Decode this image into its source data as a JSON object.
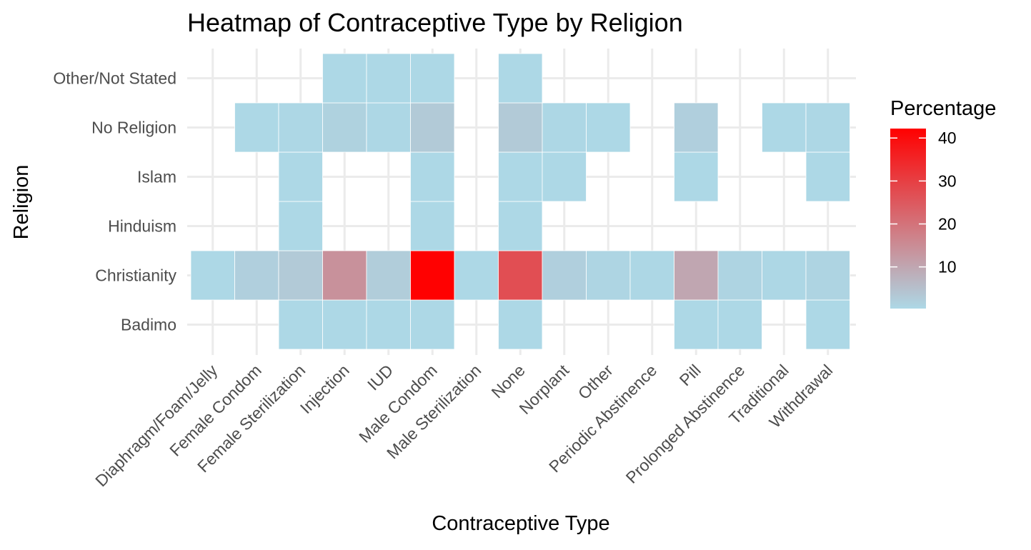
{
  "chart_data": {
    "type": "heatmap",
    "title": "Heatmap of Contraceptive Type by Religion",
    "xlabel": "Contraceptive Type",
    "ylabel": "Religion",
    "x_categories": [
      "Diaphragm/Foam/Jelly",
      "Female Condom",
      "Female Sterilization",
      "Injection",
      "IUD",
      "Male Condom",
      "Male Sterilization",
      "None",
      "Norplant",
      "Other",
      "Periodic Abstinence",
      "Pill",
      "Prolonged Abstinence",
      "Traditional",
      "Withdrawal"
    ],
    "y_categories": [
      "Badimo",
      "Christianity",
      "Hinduism",
      "Islam",
      "No Religion",
      "Other/Not Stated"
    ],
    "cells": [
      {
        "x": "Female Sterilization",
        "y": "Badimo",
        "value": 0.3
      },
      {
        "x": "Injection",
        "y": "Badimo",
        "value": 0.3
      },
      {
        "x": "IUD",
        "y": "Badimo",
        "value": 0.3
      },
      {
        "x": "Male Condom",
        "y": "Badimo",
        "value": 0.3
      },
      {
        "x": "None",
        "y": "Badimo",
        "value": 0.3
      },
      {
        "x": "Pill",
        "y": "Badimo",
        "value": 0.3
      },
      {
        "x": "Prolonged Abstinence",
        "y": "Badimo",
        "value": 0.3
      },
      {
        "x": "Withdrawal",
        "y": "Badimo",
        "value": 0.3
      },
      {
        "x": "Diaphragm/Foam/Jelly",
        "y": "Christianity",
        "value": 0.3
      },
      {
        "x": "Female Condom",
        "y": "Christianity",
        "value": 2
      },
      {
        "x": "Female Sterilization",
        "y": "Christianity",
        "value": 3
      },
      {
        "x": "Injection",
        "y": "Christianity",
        "value": 14
      },
      {
        "x": "IUD",
        "y": "Christianity",
        "value": 2.5
      },
      {
        "x": "Male Condom",
        "y": "Christianity",
        "value": 42
      },
      {
        "x": "Male Sterilization",
        "y": "Christianity",
        "value": 0.3
      },
      {
        "x": "None",
        "y": "Christianity",
        "value": 27
      },
      {
        "x": "Norplant",
        "y": "Christianity",
        "value": 2
      },
      {
        "x": "Other",
        "y": "Christianity",
        "value": 0.8
      },
      {
        "x": "Periodic Abstinence",
        "y": "Christianity",
        "value": 0.5
      },
      {
        "x": "Pill",
        "y": "Christianity",
        "value": 10
      },
      {
        "x": "Prolonged Abstinence",
        "y": "Christianity",
        "value": 1
      },
      {
        "x": "Traditional",
        "y": "Christianity",
        "value": 0.5
      },
      {
        "x": "Withdrawal",
        "y": "Christianity",
        "value": 1
      },
      {
        "x": "Female Sterilization",
        "y": "Hinduism",
        "value": 0.3
      },
      {
        "x": "Male Condom",
        "y": "Hinduism",
        "value": 0.3
      },
      {
        "x": "None",
        "y": "Hinduism",
        "value": 0.3
      },
      {
        "x": "Female Sterilization",
        "y": "Islam",
        "value": 0.3
      },
      {
        "x": "Male Condom",
        "y": "Islam",
        "value": 0.3
      },
      {
        "x": "None",
        "y": "Islam",
        "value": 0.3
      },
      {
        "x": "Norplant",
        "y": "Islam",
        "value": 0.3
      },
      {
        "x": "Pill",
        "y": "Islam",
        "value": 0.3
      },
      {
        "x": "Withdrawal",
        "y": "Islam",
        "value": 0.3
      },
      {
        "x": "Female Condom",
        "y": "No Religion",
        "value": 0.3
      },
      {
        "x": "Female Sterilization",
        "y": "No Religion",
        "value": 0.5
      },
      {
        "x": "Injection",
        "y": "No Religion",
        "value": 1.5
      },
      {
        "x": "IUD",
        "y": "No Religion",
        "value": 0.5
      },
      {
        "x": "Male Condom",
        "y": "No Religion",
        "value": 3
      },
      {
        "x": "None",
        "y": "No Religion",
        "value": 3
      },
      {
        "x": "Norplant",
        "y": "No Religion",
        "value": 0.5
      },
      {
        "x": "Other",
        "y": "No Religion",
        "value": 0.3
      },
      {
        "x": "Pill",
        "y": "No Religion",
        "value": 2
      },
      {
        "x": "Traditional",
        "y": "No Religion",
        "value": 0.3
      },
      {
        "x": "Withdrawal",
        "y": "No Religion",
        "value": 0.5
      },
      {
        "x": "Injection",
        "y": "Other/Not Stated",
        "value": 0.3
      },
      {
        "x": "IUD",
        "y": "Other/Not Stated",
        "value": 0.3
      },
      {
        "x": "Male Condom",
        "y": "Other/Not Stated",
        "value": 0.3
      },
      {
        "x": "None",
        "y": "Other/Not Stated",
        "value": 0.3
      }
    ],
    "color_scale": {
      "low": "#add8e6",
      "high": "#ff0000",
      "limits": [
        0.3,
        42.2
      ]
    },
    "legend": {
      "title": "Percentage",
      "ticks": [
        10,
        20,
        30,
        40
      ],
      "position": "right"
    },
    "grid": true
  }
}
